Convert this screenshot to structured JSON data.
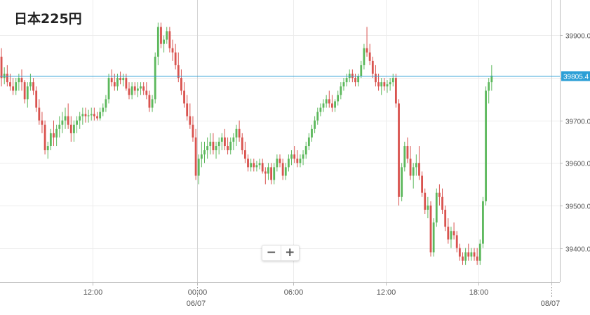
{
  "title": "日本225円",
  "zoom": {
    "minus_label": "−",
    "plus_label": "+"
  },
  "colors": {
    "up": "#5cb85c",
    "down": "#d9534f",
    "price_line": "#2c9fd6",
    "grid": "#ececec",
    "axis": "#bdbdbd",
    "tick_text": "#555555",
    "badge": "#2c9fd6"
  },
  "chart_data": {
    "type": "candlestick",
    "title": "日本225円",
    "ylim": [
      39320,
      39980
    ],
    "yticks": [
      39400,
      39500,
      39600,
      39700,
      39800,
      39900
    ],
    "ytick_labels": [
      "39400.0",
      "39500.0",
      "39600.0",
      "39700.0",
      "39800.0",
      "39900.0"
    ],
    "current_price": 39805.4,
    "current_price_label": "39805.4",
    "xlim": [
      0,
      193
    ],
    "xticks": [
      {
        "x": 32,
        "label": "12:00"
      },
      {
        "x": 68,
        "label": "00:00",
        "date": "06/07"
      },
      {
        "x": 101,
        "label": "06:00"
      },
      {
        "x": 133,
        "label": "12:00"
      },
      {
        "x": 165,
        "label": "18:00"
      },
      {
        "x": 190,
        "label": "",
        "date": "08/07"
      }
    ],
    "grid": true,
    "candles": [
      [
        39850,
        39870,
        39780,
        39800
      ],
      [
        39800,
        39825,
        39785,
        39810
      ],
      [
        39810,
        39830,
        39780,
        39790
      ],
      [
        39790,
        39810,
        39770,
        39780
      ],
      [
        39780,
        39800,
        39760,
        39770
      ],
      [
        39770,
        39800,
        39760,
        39790
      ],
      [
        39790,
        39810,
        39770,
        39800
      ],
      [
        39800,
        39820,
        39770,
        39790
      ],
      [
        39790,
        39795,
        39740,
        39750
      ],
      [
        39750,
        39790,
        39730,
        39780
      ],
      [
        39780,
        39810,
        39770,
        39790
      ],
      [
        39790,
        39800,
        39760,
        39770
      ],
      [
        39770,
        39780,
        39720,
        39730
      ],
      [
        39730,
        39750,
        39690,
        39700
      ],
      [
        39700,
        39720,
        39670,
        39690
      ],
      [
        39690,
        39700,
        39620,
        39630
      ],
      [
        39630,
        39650,
        39610,
        39640
      ],
      [
        39640,
        39680,
        39630,
        39670
      ],
      [
        39670,
        39700,
        39640,
        39660
      ],
      [
        39660,
        39690,
        39640,
        39680
      ],
      [
        39680,
        39710,
        39660,
        39690
      ],
      [
        39690,
        39720,
        39670,
        39700
      ],
      [
        39700,
        39730,
        39680,
        39710
      ],
      [
        39710,
        39740,
        39680,
        39690
      ],
      [
        39690,
        39710,
        39650,
        39670
      ],
      [
        39670,
        39700,
        39650,
        39690
      ],
      [
        39690,
        39710,
        39670,
        39700
      ],
      [
        39700,
        39720,
        39680,
        39710
      ],
      [
        39710,
        39730,
        39690,
        39715
      ],
      [
        39715,
        39730,
        39695,
        39710
      ],
      [
        39710,
        39725,
        39695,
        39712
      ],
      [
        39712,
        39730,
        39700,
        39715
      ],
      [
        39715,
        39730,
        39700,
        39710
      ],
      [
        39710,
        39720,
        39700,
        39705
      ],
      [
        39705,
        39730,
        39700,
        39720
      ],
      [
        39720,
        39740,
        39710,
        39730
      ],
      [
        39730,
        39760,
        39720,
        39750
      ],
      [
        39750,
        39810,
        39740,
        39800
      ],
      [
        39800,
        39820,
        39780,
        39790
      ],
      [
        39790,
        39810,
        39770,
        39780
      ],
      [
        39780,
        39810,
        39770,
        39800
      ],
      [
        39800,
        39815,
        39785,
        39795
      ],
      [
        39795,
        39810,
        39780,
        39800
      ],
      [
        39800,
        39810,
        39770,
        39775
      ],
      [
        39775,
        39790,
        39750,
        39760
      ],
      [
        39760,
        39790,
        39750,
        39780
      ],
      [
        39780,
        39790,
        39760,
        39770
      ],
      [
        39770,
        39790,
        39755,
        39775
      ],
      [
        39775,
        39790,
        39760,
        39780
      ],
      [
        39780,
        39790,
        39760,
        39770
      ],
      [
        39770,
        39790,
        39750,
        39760
      ],
      [
        39760,
        39770,
        39720,
        39730
      ],
      [
        39730,
        39760,
        39720,
        39750
      ],
      [
        39750,
        39860,
        39740,
        39850
      ],
      [
        39850,
        39930,
        39830,
        39920
      ],
      [
        39920,
        39930,
        39870,
        39880
      ],
      [
        39880,
        39900,
        39860,
        39890
      ],
      [
        39890,
        39920,
        39880,
        39910
      ],
      [
        39910,
        39920,
        39860,
        39870
      ],
      [
        39870,
        39890,
        39840,
        39860
      ],
      [
        39860,
        39880,
        39820,
        39830
      ],
      [
        39830,
        39860,
        39790,
        39800
      ],
      [
        39800,
        39820,
        39760,
        39770
      ],
      [
        39770,
        39790,
        39730,
        39740
      ],
      [
        39740,
        39760,
        39700,
        39710
      ],
      [
        39710,
        39740,
        39680,
        39690
      ],
      [
        39690,
        39710,
        39650,
        39660
      ],
      [
        39660,
        39680,
        39560,
        39570
      ],
      [
        39570,
        39620,
        39550,
        39610
      ],
      [
        39610,
        39650,
        39590,
        39620
      ],
      [
        39620,
        39650,
        39600,
        39630
      ],
      [
        39630,
        39660,
        39610,
        39640
      ],
      [
        39640,
        39670,
        39620,
        39650
      ],
      [
        39650,
        39670,
        39620,
        39630
      ],
      [
        39630,
        39650,
        39610,
        39640
      ],
      [
        39640,
        39660,
        39620,
        39650
      ],
      [
        39650,
        39670,
        39630,
        39660
      ],
      [
        39660,
        39680,
        39630,
        39640
      ],
      [
        39640,
        39660,
        39620,
        39630
      ],
      [
        39630,
        39660,
        39620,
        39650
      ],
      [
        39650,
        39670,
        39630,
        39660
      ],
      [
        39660,
        39690,
        39640,
        39680
      ],
      [
        39680,
        39700,
        39650,
        39660
      ],
      [
        39660,
        39670,
        39620,
        39630
      ],
      [
        39630,
        39650,
        39600,
        39610
      ],
      [
        39610,
        39620,
        39580,
        39590
      ],
      [
        39590,
        39610,
        39580,
        39600
      ],
      [
        39600,
        39610,
        39580,
        39590
      ],
      [
        39590,
        39605,
        39580,
        39595
      ],
      [
        39595,
        39610,
        39585,
        39600
      ],
      [
        39600,
        39610,
        39575,
        39580
      ],
      [
        39580,
        39590,
        39550,
        39575
      ],
      [
        39575,
        39600,
        39560,
        39590
      ],
      [
        39590,
        39600,
        39550,
        39560
      ],
      [
        39560,
        39600,
        39550,
        39590
      ],
      [
        39590,
        39620,
        39580,
        39610
      ],
      [
        39610,
        39620,
        39590,
        39600
      ],
      [
        39600,
        39610,
        39560,
        39570
      ],
      [
        39570,
        39600,
        39560,
        39590
      ],
      [
        39590,
        39620,
        39580,
        39610
      ],
      [
        39610,
        39630,
        39595,
        39620
      ],
      [
        39620,
        39640,
        39600,
        39610
      ],
      [
        39610,
        39630,
        39590,
        39600
      ],
      [
        39600,
        39620,
        39590,
        39610
      ],
      [
        39610,
        39630,
        39595,
        39620
      ],
      [
        39620,
        39650,
        39610,
        39640
      ],
      [
        39640,
        39670,
        39630,
        39660
      ],
      [
        39660,
        39690,
        39650,
        39680
      ],
      [
        39680,
        39710,
        39670,
        39700
      ],
      [
        39700,
        39730,
        39690,
        39720
      ],
      [
        39720,
        39740,
        39710,
        39730
      ],
      [
        39730,
        39750,
        39720,
        39740
      ],
      [
        39740,
        39760,
        39730,
        39750
      ],
      [
        39750,
        39770,
        39730,
        39740
      ],
      [
        39740,
        39760,
        39720,
        39730
      ],
      [
        39730,
        39750,
        39720,
        39745
      ],
      [
        39745,
        39770,
        39735,
        39760
      ],
      [
        39760,
        39790,
        39750,
        39780
      ],
      [
        39780,
        39800,
        39770,
        39790
      ],
      [
        39790,
        39810,
        39780,
        39800
      ],
      [
        39800,
        39820,
        39790,
        39810
      ],
      [
        39810,
        39820,
        39790,
        39800
      ],
      [
        39800,
        39810,
        39780,
        39790
      ],
      [
        39790,
        39810,
        39780,
        39805
      ],
      [
        39805,
        39840,
        39800,
        39830
      ],
      [
        39830,
        39880,
        39820,
        39870
      ],
      [
        39870,
        39920,
        39850,
        39860
      ],
      [
        39860,
        39880,
        39830,
        39840
      ],
      [
        39840,
        39850,
        39800,
        39810
      ],
      [
        39810,
        39830,
        39780,
        39790
      ],
      [
        39790,
        39810,
        39770,
        39780
      ],
      [
        39780,
        39800,
        39760,
        39790
      ],
      [
        39790,
        39800,
        39770,
        39780
      ],
      [
        39780,
        39795,
        39765,
        39785
      ],
      [
        39785,
        39800,
        39770,
        39790
      ],
      [
        39790,
        39810,
        39780,
        39800
      ],
      [
        39800,
        39810,
        39730,
        39740
      ],
      [
        39740,
        39750,
        39500,
        39520
      ],
      [
        39520,
        39600,
        39510,
        39590
      ],
      [
        39590,
        39650,
        39580,
        39640
      ],
      [
        39640,
        39660,
        39600,
        39610
      ],
      [
        39610,
        39640,
        39560,
        39570
      ],
      [
        39570,
        39600,
        39540,
        39590
      ],
      [
        39590,
        39620,
        39570,
        39600
      ],
      [
        39600,
        39640,
        39560,
        39570
      ],
      [
        39570,
        39580,
        39520,
        39530
      ],
      [
        39530,
        39540,
        39480,
        39490
      ],
      [
        39490,
        39520,
        39470,
        39500
      ],
      [
        39500,
        39510,
        39380,
        39390
      ],
      [
        39390,
        39470,
        39380,
        39460
      ],
      [
        39460,
        39540,
        39450,
        39530
      ],
      [
        39530,
        39550,
        39500,
        39520
      ],
      [
        39520,
        39540,
        39480,
        39490
      ],
      [
        39490,
        39500,
        39440,
        39450
      ],
      [
        39450,
        39470,
        39410,
        39420
      ],
      [
        39420,
        39450,
        39400,
        39440
      ],
      [
        39440,
        39460,
        39420,
        39430
      ],
      [
        39430,
        39440,
        39390,
        39400
      ],
      [
        39400,
        39410,
        39370,
        39380
      ],
      [
        39380,
        39390,
        39360,
        39370
      ],
      [
        39370,
        39400,
        39360,
        39390
      ],
      [
        39390,
        39410,
        39370,
        39380
      ],
      [
        39380,
        39400,
        39370,
        39390
      ],
      [
        39390,
        39400,
        39370,
        39380
      ],
      [
        39380,
        39400,
        39360,
        39370
      ],
      [
        39370,
        39420,
        39360,
        39410
      ],
      [
        39410,
        39520,
        39400,
        39510
      ],
      [
        39510,
        39780,
        39500,
        39770
      ],
      [
        39770,
        39800,
        39740,
        39790
      ],
      [
        39790,
        39830,
        39770,
        39805.4
      ]
    ]
  }
}
